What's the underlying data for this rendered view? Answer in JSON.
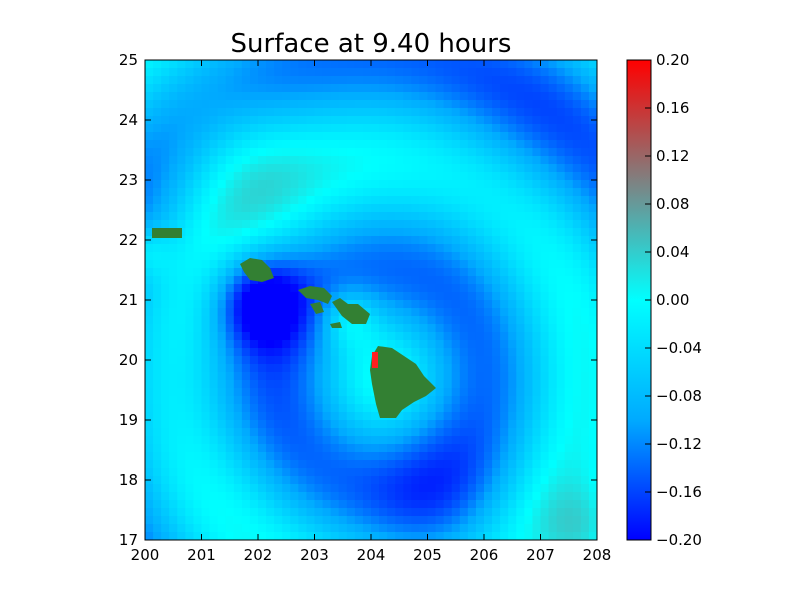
{
  "chart_data": {
    "type": "heatmap",
    "title": "Surface at 9.40 hours",
    "xlabel": "",
    "ylabel": "",
    "xlim": [
      200,
      208
    ],
    "ylim": [
      17,
      25
    ],
    "x_ticks": [
      "200",
      "201",
      "202",
      "203",
      "204",
      "205",
      "206",
      "207",
      "208"
    ],
    "y_ticks": [
      "17",
      "18",
      "19",
      "20",
      "21",
      "22",
      "23",
      "24",
      "25"
    ],
    "colorbar": {
      "vmin": -0.2,
      "vmax": 0.2,
      "ticks": [
        "0.20",
        "0.16",
        "0.12",
        "0.08",
        "0.04",
        "0.00",
        "−0.04",
        "−0.08",
        "−0.12",
        "−0.16",
        "−0.20"
      ],
      "colors": [
        [
          -0.2,
          "#0000ff"
        ],
        [
          -0.1,
          "#00aaff"
        ],
        [
          0.0,
          "#00ffff"
        ],
        [
          0.1,
          "#808080"
        ],
        [
          0.2,
          "#ff0000"
        ]
      ]
    },
    "land_color": "#338033",
    "grid": false
  }
}
